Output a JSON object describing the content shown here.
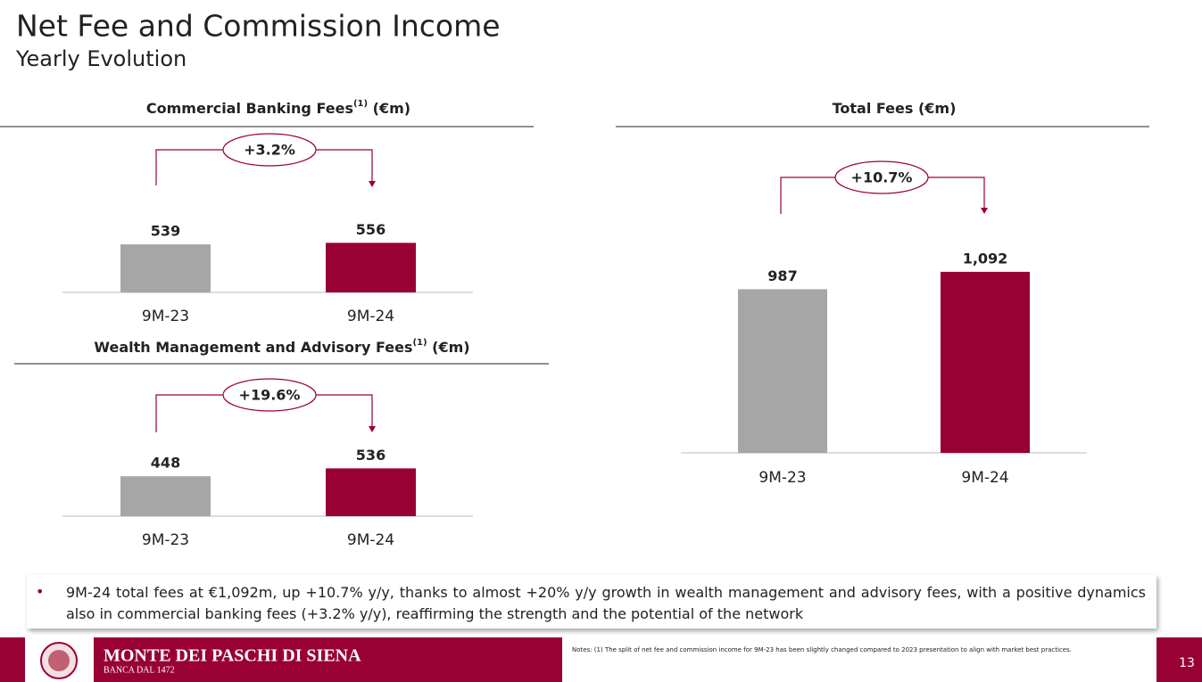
{
  "header": {
    "title": "Net Fee and Commission Income",
    "subtitle": "Yearly Evolution"
  },
  "chart_data": [
    {
      "type": "bar",
      "title": "Commercial Banking Fees",
      "title_note": "(1)",
      "title_unit": "(€m)",
      "categories": [
        "9M-23",
        "9M-24"
      ],
      "values": [
        539,
        556
      ],
      "colors": [
        "#a6a6a6",
        "#990033"
      ],
      "annotation": "+3.2%"
    },
    {
      "type": "bar",
      "title": "Wealth Management and Advisory Fees",
      "title_note": "(1)",
      "title_unit": "(€m)",
      "categories": [
        "9M-23",
        "9M-24"
      ],
      "values": [
        448,
        536
      ],
      "colors": [
        "#a6a6a6",
        "#990033"
      ],
      "annotation": "+19.6%"
    },
    {
      "type": "bar",
      "title": "Total Fees",
      "title_unit": "(€m)",
      "categories": [
        "9M-23",
        "9M-24"
      ],
      "values": [
        987,
        1092
      ],
      "value_labels": [
        "987",
        "1,092"
      ],
      "colors": [
        "#a6a6a6",
        "#990033"
      ],
      "annotation": "+10.7%"
    }
  ],
  "bullet": "9M-24 total fees at €1,092m, up +10.7% y/y, thanks to almost +20% y/y growth in wealth management and advisory fees, with a positive dynamics also in commercial banking fees (+3.2% y/y), reaffirming  the strength and the potential of the network",
  "footer": {
    "brand": "MONTE DEI PASCHI DI SIENA",
    "tagline": "BANCA DAL 1472",
    "notes": "Notes: (1) The split of net fee and commission income for 9M-23 has been slightly changed compared to 2023 presentation to align with market best practices.",
    "page": "13"
  }
}
